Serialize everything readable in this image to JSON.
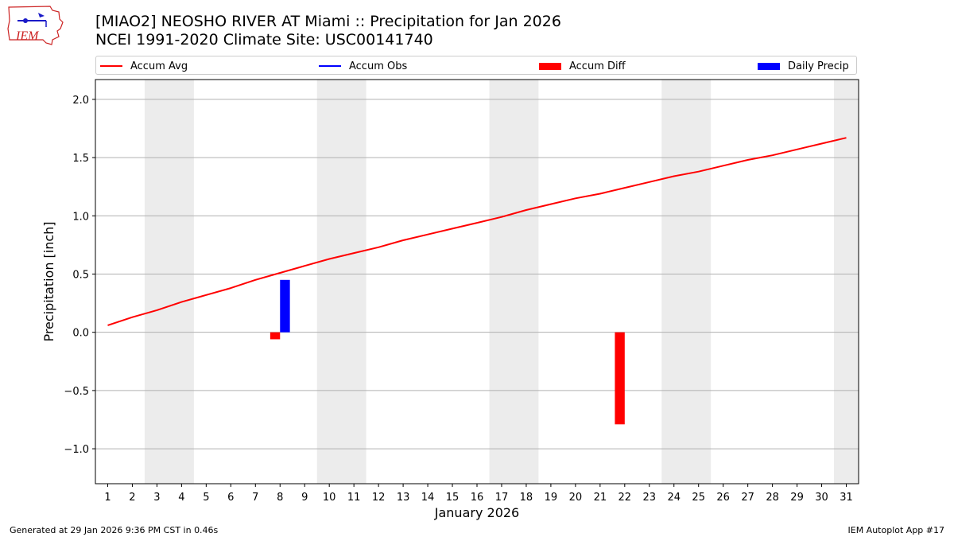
{
  "header": {
    "logo_text": "IEM",
    "title_line1": "[MIAO2] NEOSHO RIVER  AT Miami :: Precipitation for Jan 2026",
    "title_line2": "NCEI 1991-2020 Climate Site: USC00141740"
  },
  "legend": {
    "items": [
      {
        "label": "Accum Avg",
        "kind": "line",
        "color": "#ff0000"
      },
      {
        "label": "Accum Obs",
        "kind": "line",
        "color": "#0000ff"
      },
      {
        "label": "Accum Diff",
        "kind": "patch",
        "color": "#ff0000"
      },
      {
        "label": "Daily Precip",
        "kind": "patch",
        "color": "#0000ff"
      }
    ]
  },
  "chart_data": {
    "type": "line",
    "xlabel": "January 2026",
    "ylabel": "Precipitation [inch]",
    "x": [
      1,
      2,
      3,
      4,
      5,
      6,
      7,
      8,
      9,
      10,
      11,
      12,
      13,
      14,
      15,
      16,
      17,
      18,
      19,
      20,
      21,
      22,
      23,
      24,
      25,
      26,
      27,
      28,
      29,
      30,
      31
    ],
    "xlim": [
      0.5,
      31.5
    ],
    "ylim": [
      -1.3,
      2.17
    ],
    "yticks": [
      -1.0,
      -0.5,
      0.0,
      0.5,
      1.0,
      1.5,
      2.0
    ],
    "ytick_labels": [
      "−1.0",
      "−0.5",
      "0.0",
      "0.5",
      "1.0",
      "1.5",
      "2.0"
    ],
    "grid": "horizontal",
    "weekend_shading": [
      [
        2.5,
        4.5
      ],
      [
        9.5,
        11.5
      ],
      [
        16.5,
        18.5
      ],
      [
        23.5,
        25.5
      ],
      [
        30.5,
        31.5
      ]
    ],
    "shading_color": "#ececec",
    "series": [
      {
        "name": "Accum Avg",
        "type": "line",
        "color": "#ff0000",
        "values": [
          0.06,
          0.13,
          0.19,
          0.26,
          0.32,
          0.38,
          0.45,
          0.51,
          0.57,
          0.63,
          0.68,
          0.73,
          0.79,
          0.84,
          0.89,
          0.94,
          0.99,
          1.05,
          1.1,
          1.15,
          1.19,
          1.24,
          1.29,
          1.34,
          1.38,
          1.43,
          1.48,
          1.52,
          1.57,
          1.62,
          1.67
        ]
      },
      {
        "name": "Accum Diff",
        "type": "bar",
        "color": "#ff0000",
        "points": [
          {
            "x": 8,
            "y": -0.06
          },
          {
            "x": 22,
            "y": -0.79
          }
        ]
      },
      {
        "name": "Daily Precip",
        "type": "bar",
        "color": "#0000ff",
        "points": [
          {
            "x": 8,
            "y": 0.45
          }
        ]
      }
    ]
  },
  "footer": {
    "left": "Generated at 29 Jan 2026 9:36 PM CST in 0.46s",
    "right": "IEM Autoplot App #17"
  }
}
